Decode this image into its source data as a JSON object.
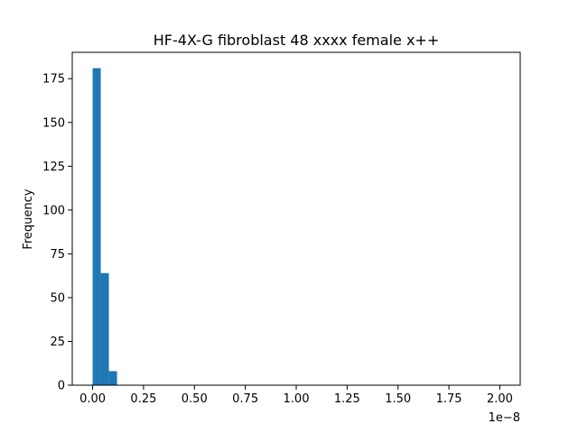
{
  "chart_data": {
    "type": "bar",
    "title": "HF-4X-G fibroblast 48 xxxx female x++",
    "xlabel": "",
    "ylabel": "Frequency",
    "x_offset_label": "1e−8",
    "x_scale_factor": 1e-08,
    "xlim": [
      -0.1,
      2.1
    ],
    "ylim": [
      0,
      190.05
    ],
    "x_ticks": [
      0.0,
      0.25,
      0.5,
      0.75,
      1.0,
      1.25,
      1.5,
      1.75,
      2.0
    ],
    "x_tick_labels": [
      "0.00",
      "0.25",
      "0.50",
      "0.75",
      "1.00",
      "1.25",
      "1.50",
      "1.75",
      "2.00"
    ],
    "y_ticks": [
      0,
      25,
      50,
      75,
      100,
      125,
      150,
      175
    ],
    "y_tick_labels": [
      "0",
      "25",
      "50",
      "75",
      "100",
      "125",
      "150",
      "175"
    ],
    "bin_edges": [
      0.0,
      0.04,
      0.08,
      0.12,
      0.16,
      0.2,
      0.24,
      0.28,
      0.32,
      0.36,
      0.4,
      0.44,
      0.48,
      0.52,
      0.56,
      0.6,
      0.64,
      0.68,
      0.72,
      0.76,
      0.8,
      0.84,
      0.88,
      0.92,
      0.96,
      1.0,
      1.04,
      1.08,
      1.12,
      1.16,
      1.2,
      1.24,
      1.28,
      1.32,
      1.36,
      1.4,
      1.44,
      1.48,
      1.52,
      1.56,
      1.6,
      1.64,
      1.68,
      1.72,
      1.76,
      1.8,
      1.84,
      1.88,
      1.92,
      1.96,
      2.0
    ],
    "counts": [
      181,
      64,
      8,
      0,
      0,
      0,
      0,
      0,
      0,
      0,
      0,
      0,
      0,
      0,
      0,
      0,
      0,
      0,
      0,
      0,
      0,
      0,
      0,
      0,
      0,
      0,
      0,
      0,
      0,
      0,
      0,
      0,
      0,
      0,
      0,
      0,
      0,
      0,
      0,
      0,
      0,
      0,
      0,
      0,
      0,
      0,
      0,
      0,
      0,
      0
    ],
    "bar_color": "#1f77b4",
    "grid": false,
    "legend": "none"
  }
}
